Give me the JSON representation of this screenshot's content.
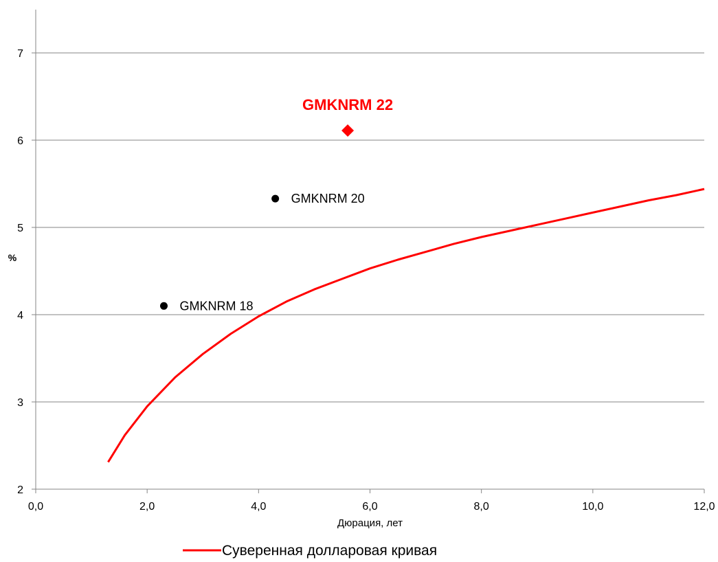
{
  "chart_data": {
    "type": "scatter",
    "xlabel": "Дюрация, лет",
    "ylabel": "%",
    "xlim": [
      0,
      12
    ],
    "ylim": [
      2,
      7.5
    ],
    "x_ticks": [
      "0,0",
      "2,0",
      "4,0",
      "6,0",
      "8,0",
      "10,0",
      "12,0"
    ],
    "y_ticks": [
      "2",
      "3",
      "4",
      "5",
      "6",
      "7"
    ],
    "grid": "horizontal",
    "legend_position": "bottom",
    "curve": {
      "name": "Суверенная долларовая кривая",
      "color": "#ff0000",
      "x": [
        1.3,
        1.6,
        2.0,
        2.5,
        3.0,
        3.5,
        4.0,
        4.5,
        5.0,
        5.5,
        6.0,
        6.5,
        7.0,
        7.5,
        8.0,
        8.5,
        9.0,
        9.5,
        10.0,
        10.5,
        11.0,
        11.5,
        12.0
      ],
      "y": [
        2.31,
        2.62,
        2.95,
        3.28,
        3.55,
        3.78,
        3.98,
        4.15,
        4.29,
        4.41,
        4.53,
        4.63,
        4.72,
        4.81,
        4.89,
        4.96,
        5.03,
        5.1,
        5.17,
        5.24,
        5.31,
        5.37,
        5.44
      ]
    },
    "points": [
      {
        "label": "GMKNRM 18",
        "x": 2.3,
        "y": 4.1,
        "color": "#000000",
        "marker": "circle",
        "highlight": false
      },
      {
        "label": "GMKNRM 20",
        "x": 4.3,
        "y": 5.33,
        "color": "#000000",
        "marker": "circle",
        "highlight": false
      },
      {
        "label": "GMKNRM 22",
        "x": 5.6,
        "y": 6.11,
        "color": "#ff0000",
        "marker": "diamond",
        "highlight": true
      }
    ]
  }
}
